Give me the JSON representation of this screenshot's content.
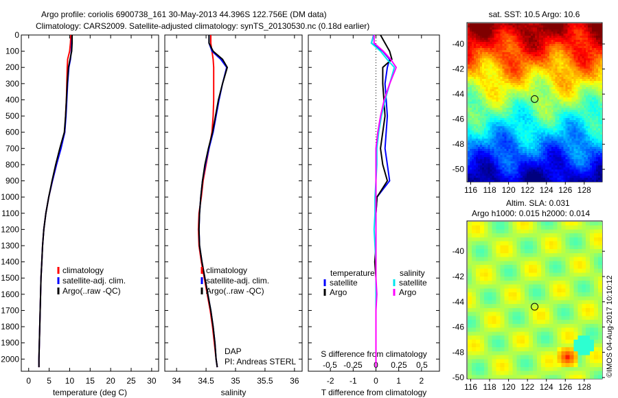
{
  "title": {
    "line1": "Argo profile: coriolis 6900738_161 30-May-2013 44.396S 122.756E (DM data)",
    "line2": "Climatology: CARS2009. Satellite-adjusted climatology: synTS_20130530.nc (0.18d earlier)"
  },
  "credit": "©IMOS 04-Aug-2017 10:10:12",
  "colors": {
    "climatology": "#ff0000",
    "satellite": "#0000ff",
    "argo": "#000000",
    "sal_satellite": "#00e5ee",
    "sal_argo": "#ff00ff"
  },
  "chart_data": [
    {
      "type": "line",
      "name": "temperature",
      "xlabel": "temperature (deg C)",
      "xlim": [
        -1.8,
        31.7
      ],
      "ylim": [
        0,
        2075
      ],
      "xticks": [
        0,
        5,
        10,
        15,
        20,
        25,
        30
      ],
      "yticks": [
        0,
        100,
        200,
        300,
        400,
        500,
        600,
        700,
        800,
        900,
        1000,
        1100,
        1200,
        1300,
        1400,
        1500,
        1600,
        1700,
        1800,
        1900,
        2000
      ],
      "depth": [
        0,
        50,
        100,
        150,
        200,
        300,
        400,
        500,
        600,
        700,
        800,
        900,
        1000,
        1100,
        1200,
        1300,
        1400,
        1500,
        1600,
        1700,
        1800,
        1900,
        2000,
        2050
      ],
      "legend": [
        "climatology",
        "satellite-adj. clim.",
        "Argo(..raw -QC)"
      ],
      "series": [
        {
          "name": "climatology",
          "color": "#ff0000",
          "values": [
            10.3,
            10.2,
            10.0,
            9.5,
            9.4,
            9.3,
            9.2,
            9.0,
            8.8,
            7.8,
            6.8,
            5.8,
            4.9,
            4.2,
            3.7,
            3.4,
            3.2,
            3.0,
            2.9,
            2.8,
            2.7,
            2.6,
            2.5,
            2.5
          ]
        },
        {
          "name": "satellite-adj. clim.",
          "color": "#0000ff",
          "values": [
            10.6,
            10.5,
            10.4,
            10.2,
            9.8,
            9.5,
            9.3,
            9.1,
            8.8,
            7.9,
            6.8,
            5.8,
            4.9,
            4.2,
            3.7,
            3.4,
            3.2,
            3.0,
            2.9,
            2.8,
            2.7,
            2.6,
            2.5,
            2.5
          ]
        },
        {
          "name": "Argo(..raw -QC)",
          "color": "#000000",
          "values": [
            10.6,
            10.6,
            10.5,
            10.1,
            9.7,
            9.4,
            9.2,
            9.0,
            8.7,
            7.6,
            6.6,
            5.7,
            4.9,
            4.2,
            3.7,
            3.4,
            3.2,
            3.0,
            2.9,
            2.8,
            2.7,
            2.6,
            2.5,
            2.5
          ]
        }
      ]
    },
    {
      "type": "line",
      "name": "salinity",
      "xlabel": "salinity",
      "xlim": [
        33.8,
        36.13
      ],
      "ylim": [
        0,
        2075
      ],
      "xticks": [
        34,
        34.5,
        35,
        35.5,
        36
      ],
      "depth": [
        0,
        50,
        100,
        150,
        200,
        300,
        400,
        500,
        600,
        700,
        800,
        900,
        1000,
        1100,
        1200,
        1300,
        1400,
        1500,
        1600,
        1700,
        1800,
        1900,
        2000,
        2050
      ],
      "legend": [
        "climatology",
        "satellite-adj. clim.",
        "Argo(..raw -QC)"
      ],
      "annotation": [
        "DAP",
        "PI: Andreas STERL"
      ],
      "series": [
        {
          "name": "climatology",
          "color": "#ff0000",
          "values": [
            34.58,
            34.58,
            34.6,
            34.62,
            34.63,
            34.63,
            34.63,
            34.62,
            34.6,
            34.55,
            34.5,
            34.45,
            34.42,
            34.38,
            34.37,
            34.38,
            34.42,
            34.47,
            34.52,
            34.57,
            34.61,
            34.64,
            34.67,
            34.69
          ]
        },
        {
          "name": "satellite-adj. clim.",
          "color": "#0000ff",
          "values": [
            34.55,
            34.55,
            34.6,
            34.75,
            34.85,
            34.78,
            34.72,
            34.67,
            34.62,
            34.55,
            34.49,
            34.44,
            34.41,
            34.39,
            34.38,
            34.39,
            34.43,
            34.48,
            34.53,
            34.58,
            34.62,
            34.65,
            34.67,
            34.69
          ]
        },
        {
          "name": "Argo(..raw -QC)",
          "color": "#000000",
          "values": [
            34.55,
            34.55,
            34.62,
            34.78,
            34.86,
            34.78,
            34.71,
            34.66,
            34.61,
            34.54,
            34.48,
            34.44,
            34.41,
            34.39,
            34.38,
            34.39,
            34.43,
            34.48,
            34.53,
            34.58,
            34.62,
            34.65,
            34.67,
            34.69
          ]
        }
      ]
    },
    {
      "type": "line",
      "name": "difference",
      "xlabel": "T difference from climatology",
      "x2label": "S difference from climatology",
      "xlim": [
        -2.97,
        2.79
      ],
      "x2lim": [
        -0.74,
        0.69
      ],
      "ylim": [
        0,
        2075
      ],
      "xticks": [
        -2,
        -1,
        0,
        1,
        2
      ],
      "x2ticks": [
        "-0.5",
        "-0.25",
        "0",
        "0.25",
        "0.5"
      ],
      "depth": [
        0,
        50,
        100,
        150,
        200,
        300,
        400,
        500,
        600,
        700,
        800,
        900,
        1000,
        1100,
        1200,
        1300,
        1400,
        1500,
        1600,
        1700,
        1800,
        1900,
        2000,
        2050
      ],
      "legend": {
        "temperature": "temperature",
        "salinity": "salinity",
        "satellite": "satellite",
        "argo": "Argo"
      },
      "series": [
        {
          "name": "T satellite",
          "axis": "T",
          "color": "#0000ff",
          "values": [
            -0.1,
            -0.2,
            0.3,
            0.6,
            0.5,
            0.4,
            0.45,
            0.5,
            0.45,
            0.4,
            0.5,
            0.6,
            0.05,
            0,
            0,
            0,
            0,
            0,
            0,
            0,
            0,
            0,
            0,
            0
          ]
        },
        {
          "name": "T Argo",
          "axis": "T",
          "color": "#000000",
          "values": [
            0.2,
            0.4,
            0.6,
            0.7,
            0.3,
            0.3,
            0.35,
            0.4,
            0.3,
            0.2,
            0.3,
            0.5,
            0.05,
            0,
            0,
            0,
            -0.05,
            0,
            0,
            0,
            0,
            0,
            0,
            0
          ]
        },
        {
          "name": "S satellite",
          "axis": "S",
          "color": "#00e5ee",
          "values": [
            -0.02,
            -0.05,
            0.05,
            0.12,
            0.2,
            0.15,
            0.1,
            0.06,
            0.03,
            0.01,
            0.01,
            0.0,
            -0.01,
            -0.01,
            -0.02,
            -0.01,
            0,
            0,
            0,
            0,
            0,
            0,
            0,
            0
          ]
        },
        {
          "name": "S Argo",
          "axis": "S",
          "color": "#ff00ff",
          "values": [
            -0.02,
            -0.02,
            0.08,
            0.16,
            0.22,
            0.15,
            0.09,
            0.05,
            0.02,
            0.0,
            0.0,
            0.0,
            0,
            0,
            0,
            0,
            0,
            0,
            0.01,
            0,
            0,
            0,
            0,
            0
          ]
        }
      ]
    },
    {
      "type": "heatmap",
      "name": "sst-map",
      "title": "sat. SST: 10.5 Argo: 10.6",
      "xticks": [
        116,
        118,
        120,
        122,
        124,
        126,
        128
      ],
      "yticks": [
        -40,
        -42,
        -44,
        -46,
        -48,
        -50
      ],
      "xlim": [
        115.6,
        129.9
      ],
      "ylim": [
        -51.0,
        -38.3
      ],
      "marker": [
        122.756,
        -44.396
      ]
    },
    {
      "type": "heatmap",
      "name": "sla-map",
      "title1": "Altim. SLA: 0.031",
      "title2": "Argo h1000: 0.015 h2000: 0.014",
      "xticks": [
        116,
        118,
        120,
        122,
        124,
        126,
        128
      ],
      "yticks": [
        -40,
        -42,
        -44,
        -46,
        -48,
        -50
      ],
      "xlim": [
        115.6,
        129.9
      ],
      "ylim": [
        -50.1,
        -37.6
      ],
      "marker": [
        122.756,
        -44.396
      ]
    }
  ]
}
